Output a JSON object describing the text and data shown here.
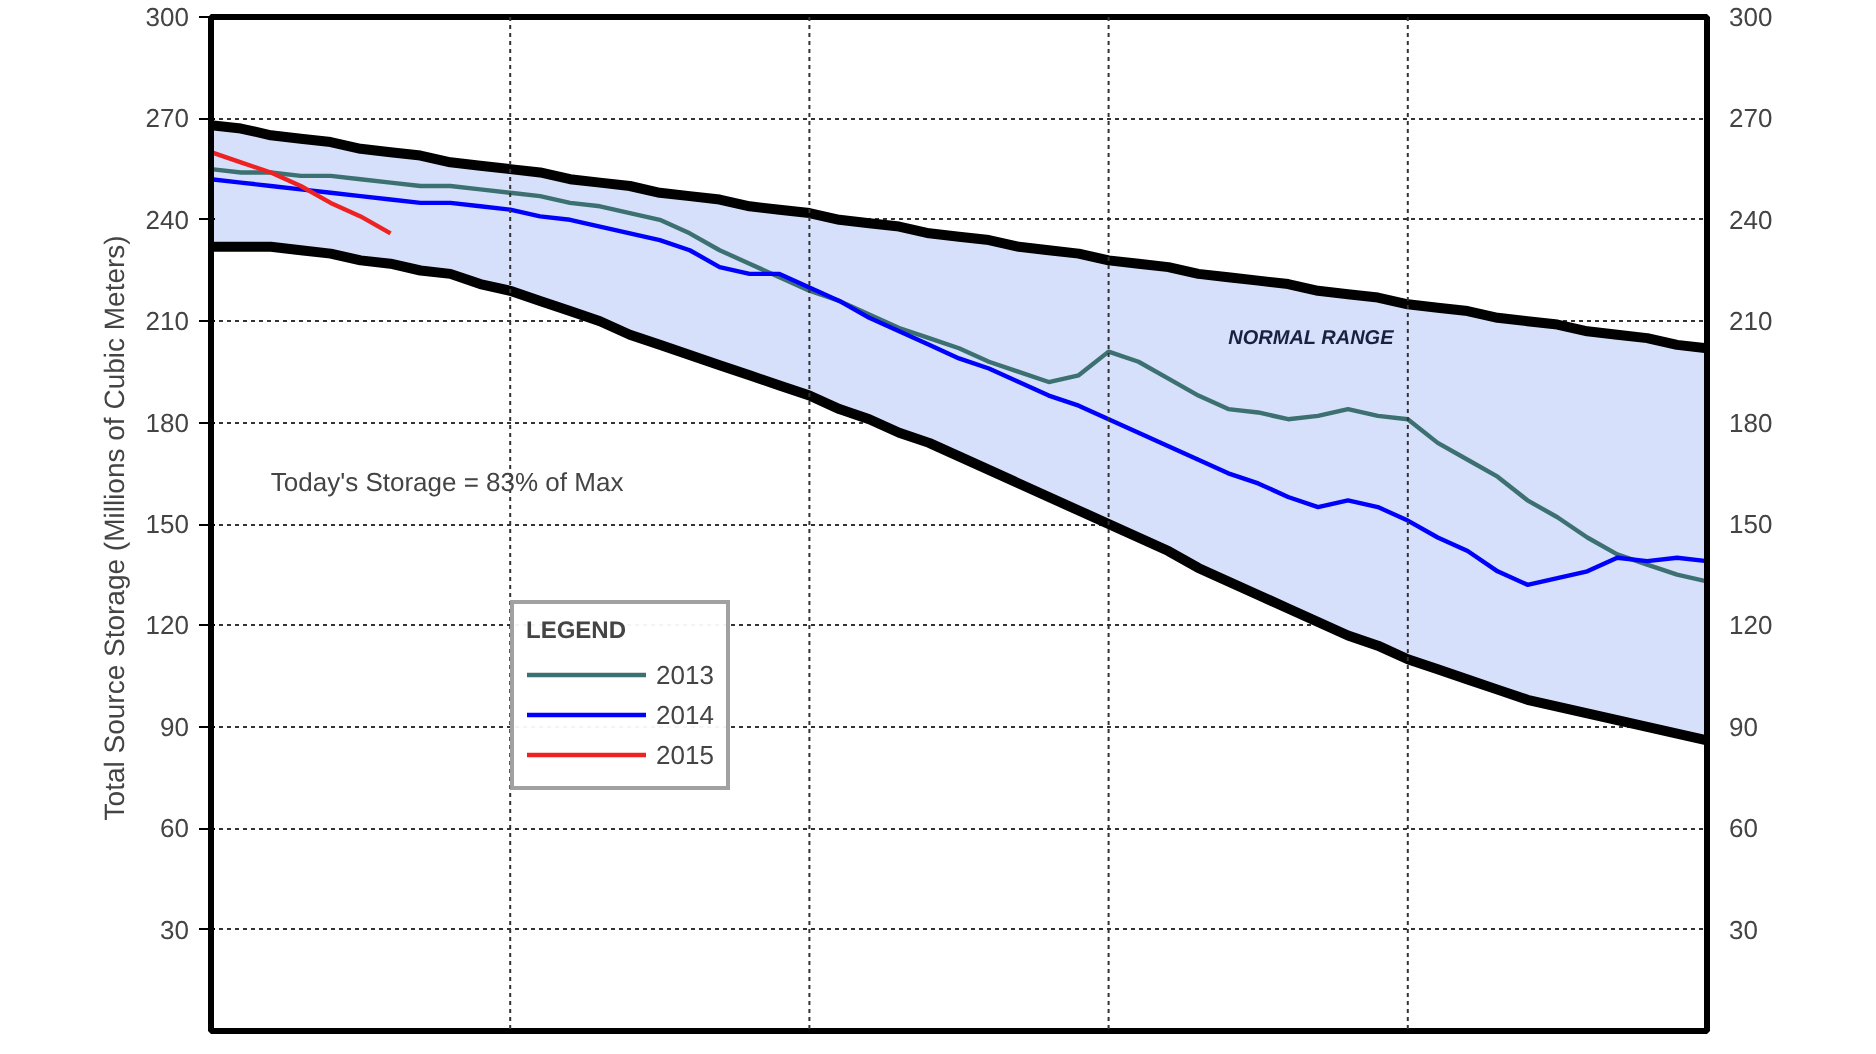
{
  "chart_data": {
    "type": "line",
    "ylabel": "Total Source Storage  (Millions of Cubic Meters)",
    "legend_title": "LEGEND",
    "legend": "bottom left",
    "grid": true,
    "line_style": "solid",
    "marker": "none",
    "categories": [
      null,
      null,
      null,
      null,
      null,
      null,
      null,
      null,
      null,
      null,
      null,
      null,
      null,
      null,
      null,
      null,
      null,
      null,
      null,
      null,
      null,
      null,
      null,
      null,
      null,
      null,
      null,
      null,
      null,
      null,
      null,
      null,
      null,
      null,
      null,
      null,
      null,
      null,
      null,
      null,
      null,
      null,
      null,
      null,
      null,
      null,
      null,
      null,
      null,
      null,
      null
    ],
    "ylim": [
      0,
      300
    ],
    "yticks": [
      30,
      60,
      90,
      120,
      150,
      180,
      210,
      240,
      270,
      300
    ],
    "y2lim": [
      0,
      300
    ],
    "y2ticks": [
      30,
      60,
      90,
      120,
      150,
      180,
      210,
      240,
      270,
      300
    ],
    "annotations": [
      "Today's Storage =  83%  of Max"
    ],
    "series": [
      {
        "name": "NORMAL RANGE",
        "type": "area",
        "color": "#d6e0fa",
        "values": [
          268,
          267,
          265,
          264,
          263,
          261,
          260,
          259,
          257,
          256,
          255,
          254,
          252,
          251,
          250,
          248,
          247,
          246,
          244,
          243,
          242,
          240,
          239,
          238,
          236,
          235,
          234,
          232,
          231,
          230,
          228,
          227,
          226,
          224,
          223,
          222,
          221,
          219,
          218,
          217,
          215,
          214,
          213,
          211,
          210,
          209,
          207,
          206,
          205,
          203,
          202
        ]
      },
      {
        "type": "line",
        "color": "#000000",
        "values": [
          232,
          232,
          232,
          231,
          230,
          228,
          227,
          225,
          224,
          221,
          219,
          216,
          213,
          210,
          206,
          203,
          200,
          197,
          194,
          191,
          188,
          184,
          181,
          177,
          174,
          170,
          166,
          162,
          158,
          154,
          150,
          146,
          142,
          137,
          133,
          129,
          125,
          121,
          117,
          114,
          110,
          107,
          104,
          101,
          98,
          96,
          94,
          92,
          90,
          88,
          86
        ]
      },
      {
        "name": "2013",
        "color": "#3d7070",
        "values": [
          255,
          254,
          254,
          253,
          253,
          252,
          251,
          250,
          250,
          249,
          248,
          247,
          245,
          244,
          242,
          240,
          236,
          231,
          227,
          223,
          219,
          216,
          212,
          208,
          205,
          202,
          198,
          195,
          192,
          194,
          201,
          198,
          193,
          188,
          184,
          183,
          181,
          182,
          184,
          182,
          181,
          174,
          169,
          164,
          157,
          152,
          146,
          141,
          138,
          135,
          133
        ]
      },
      {
        "name": "2014",
        "color": "#0000ff",
        "values": [
          252,
          251,
          250,
          249,
          248,
          247,
          246,
          245,
          245,
          244,
          243,
          241,
          240,
          238,
          236,
          234,
          231,
          226,
          224,
          224,
          220,
          216,
          211,
          207,
          203,
          199,
          196,
          192,
          188,
          185,
          181,
          177,
          173,
          169,
          165,
          162,
          158,
          155,
          157,
          155,
          151,
          146,
          142,
          136,
          132,
          134,
          136,
          140,
          139,
          140,
          139
        ]
      },
      {
        "name": "2015",
        "color": "#ee2222",
        "values": [
          260,
          257,
          254,
          250,
          245,
          241,
          236,
          null,
          null,
          null,
          null,
          null,
          null,
          null,
          null,
          null,
          null,
          null,
          null,
          null,
          null,
          null,
          null,
          null,
          null,
          null,
          null,
          null,
          null,
          null,
          null,
          null,
          null,
          null,
          null,
          null,
          null,
          null,
          null,
          null,
          null,
          null,
          null,
          null,
          null,
          null,
          null,
          null,
          null,
          null,
          null
        ]
      }
    ]
  }
}
